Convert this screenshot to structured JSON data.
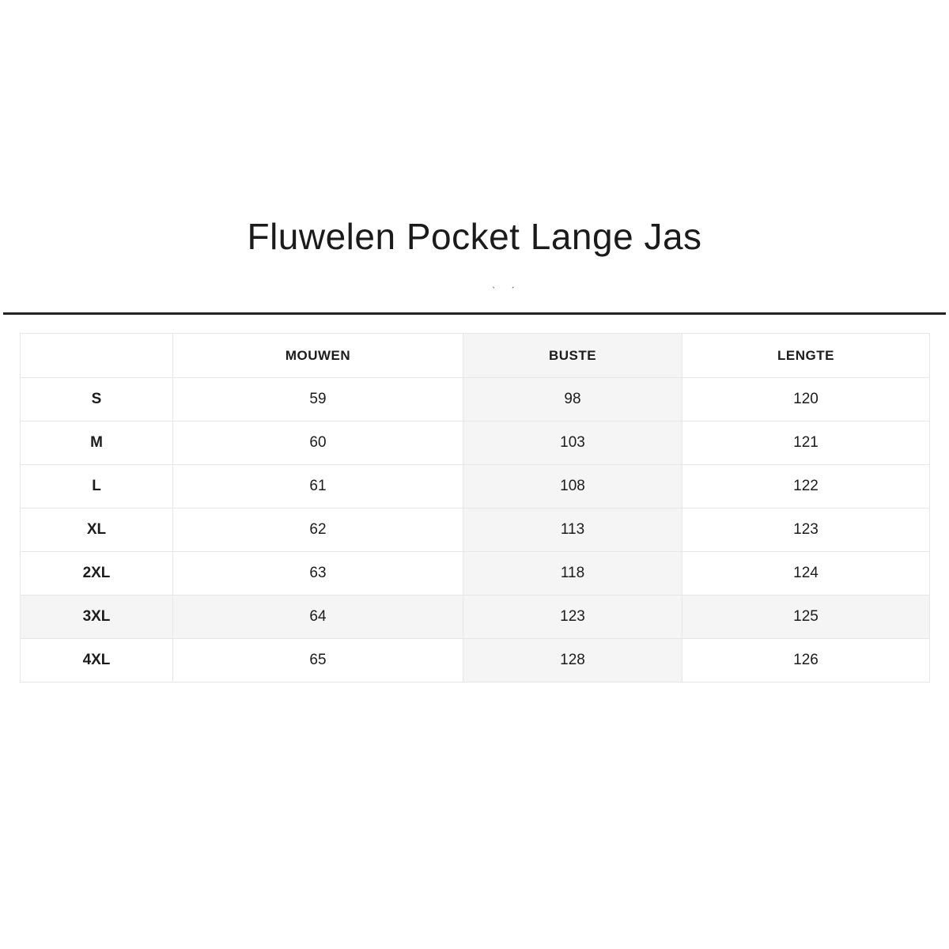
{
  "page": {
    "title": "Fluwelen Pocket Lange Jas",
    "tick_marks": [
      "ˋ",
      "ˊ"
    ]
  },
  "colors": {
    "divider": "#232323",
    "table_border": "#e7e7e7",
    "highlight_bg": "#f5f5f5",
    "text": "#1b1b1b"
  },
  "size_table": {
    "columns": [
      "",
      "MOUWEN",
      "BUSTE",
      "LENGTE"
    ],
    "highlighted_column": "BUSTE",
    "highlighted_row": "3XL",
    "rows": [
      [
        "S",
        "59",
        "98",
        "120"
      ],
      [
        "M",
        "60",
        "103",
        "121"
      ],
      [
        "L",
        "61",
        "108",
        "122"
      ],
      [
        "XL",
        "62",
        "113",
        "123"
      ],
      [
        "2XL",
        "63",
        "118",
        "124"
      ],
      [
        "3XL",
        "64",
        "123",
        "125"
      ],
      [
        "4XL",
        "65",
        "128",
        "126"
      ]
    ]
  }
}
